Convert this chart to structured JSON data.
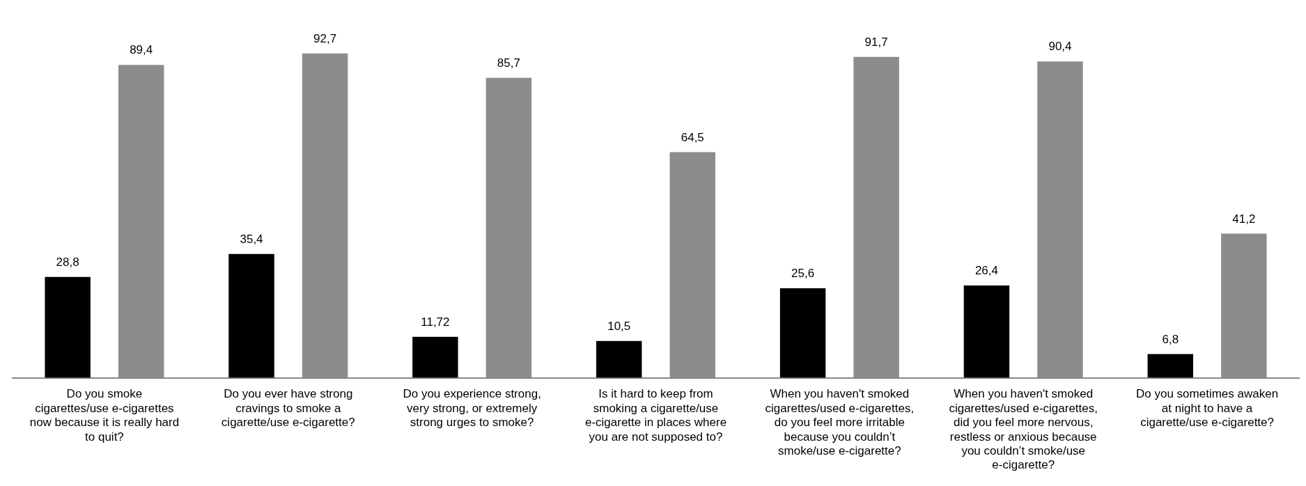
{
  "chart_data": {
    "type": "bar",
    "categories": [
      "Do you smoke cigarettes/use e-cigarettes now because it is really hard to quit?",
      "Do you ever have strong cravings to smoke a cigarette/use e-cigarette?",
      "Do you experience strong, very strong, or extremely strong urges to smoke?",
      "Is it hard to keep from smoking a cigarette/use e-cigarette in places where you are not supposed to?",
      "When you haven't smoked cigarettes/used e-cigarettes, do you feel more irritable because you couldn’t smoke/use e-cigarette?",
      "When you haven't smoked cigarettes/used e-cigarettes, did you feel more nervous, restless or anxious because you couldn’t smoke/use e-cigarette?",
      "Do you sometimes awaken at night to have a cigarette/use e-cigarette?"
    ],
    "series": [
      {
        "color": "#000000",
        "values": [
          28.8,
          35.4,
          11.72,
          10.5,
          25.6,
          26.4,
          6.8
        ],
        "value_labels": [
          "28,8",
          "35,4",
          "11,72",
          "10,5",
          "25,6",
          "26,4",
          "6,8"
        ]
      },
      {
        "color": "#8c8c8c",
        "values": [
          89.4,
          92.7,
          85.7,
          64.5,
          91.7,
          90.4,
          41.2
        ],
        "value_labels": [
          "89,4",
          "92,7",
          "85,7",
          "64,5",
          "91,7",
          "90,4",
          "41,2"
        ]
      }
    ],
    "relative": false,
    "grid": false,
    "legend": false
  }
}
